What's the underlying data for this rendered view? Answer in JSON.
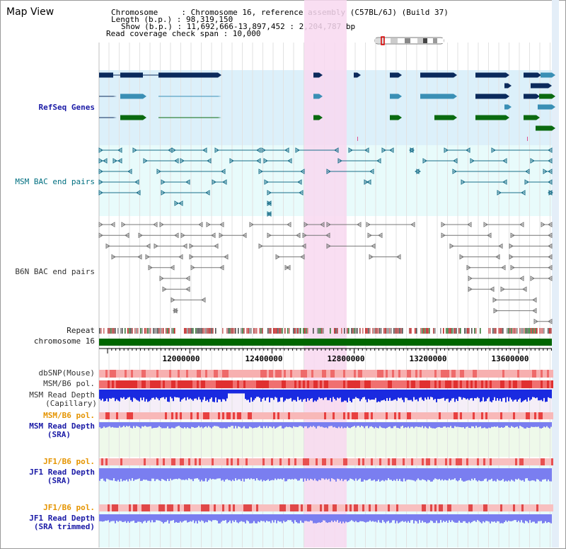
{
  "title": "Map View",
  "info": {
    "chromosome": "Chromosome     : Chromosome 16, reference assembly (C57BL/6J) (Build 37)",
    "length": "Length (b.p.) : 98,319,150",
    "show": "Show (b.p.) : 11,692,666-13,897,452 : 2,204,787 bp",
    "read_coverage": "Read coverage check span : 10,000"
  },
  "tracks": {
    "refseq": "RefSeq Genes",
    "msm_bac": "MSM BAC end pairs",
    "b6n_bac": "B6N BAC end pairs",
    "repeat": "Repeat",
    "chromosome": "chromosome 16",
    "dbsnp": "dbSNP(Mouse)",
    "msm_b6_pol_1": "MSM/B6 pol.",
    "msm_read_depth_cap_1": "MSM Read Depth",
    "msm_read_depth_cap_2": "(Capillary)",
    "msm_b6_pol_2": "MSM/B6 pol.",
    "msm_read_depth_sra_1": "MSM Read Depth",
    "msm_read_depth_sra_2": "(SRA)",
    "jf1_b6_pol_1": "JF1/B6 pol.",
    "jf1_read_depth_sra_1": "JF1 Read Depth",
    "jf1_read_depth_sra_2": "(SRA)",
    "jf1_b6_pol_2": "JF1/B6 pol.",
    "jf1_read_depth_trim_1": "JF1 Read Depth",
    "jf1_read_depth_trim_2": "(SRA trimmed)"
  },
  "axis": {
    "ticks": [
      "12000000",
      "12400000",
      "12800000",
      "13200000",
      "13600000"
    ]
  },
  "colors": {
    "refseq_bg": "#dcf0fa",
    "msm_bac_bg": "#e8fbfb",
    "highlight": "#f8d8f0",
    "refseq_dark": "#0b2a5c",
    "refseq_mid": "#3a8fb5",
    "refseq_green": "#0a6a10",
    "msm_bac": "#1a6f8a",
    "b6n_bac": "#777777",
    "chromosome_bar": "#006600",
    "snp_red": "#ee4444",
    "depth_blue": "#1a2ae0",
    "depth_sra": "#7a7ef0"
  }
}
